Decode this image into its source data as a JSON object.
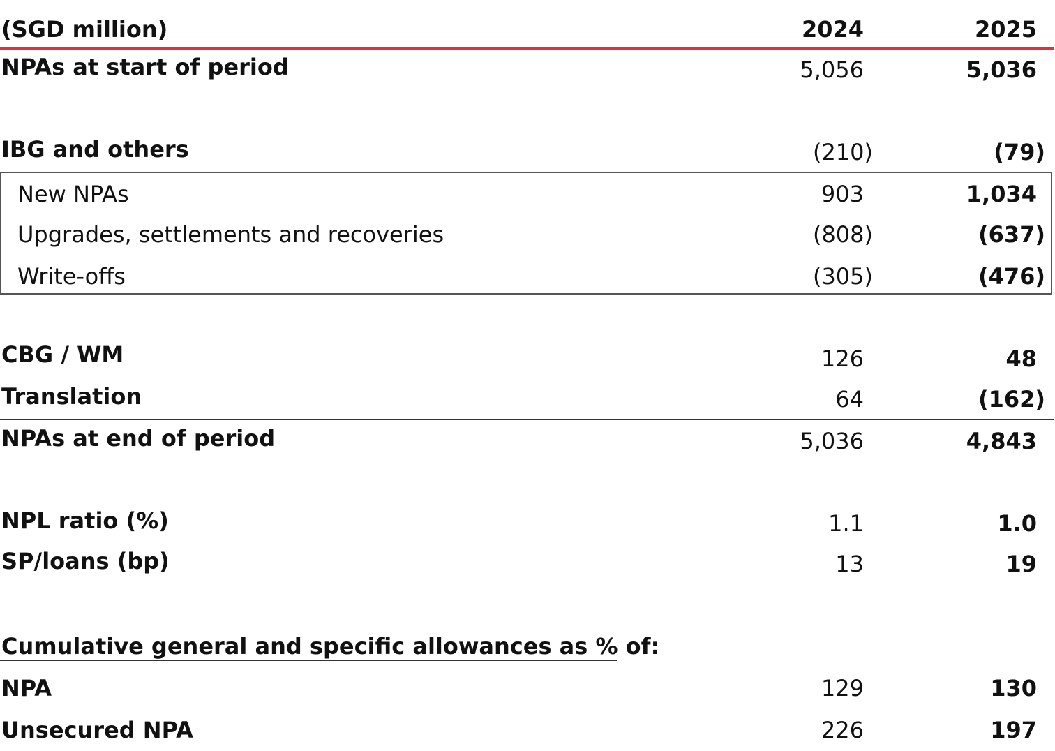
{
  "header": {
    "unit_label": "(SGD million)",
    "col_2024": "2024",
    "col_2025": "2025"
  },
  "rows": {
    "npas_start": {
      "label": "NPAs at start of period",
      "v2024": "5,056",
      "v2025": "5,036"
    },
    "ibg": {
      "label": "IBG and others",
      "v2024": "(210)",
      "v2025": "(79)"
    },
    "new_npas": {
      "label": "New NPAs",
      "v2024": "903",
      "v2025": "1,034"
    },
    "upgrades": {
      "label": "Upgrades, settlements and recoveries",
      "v2024": "(808)",
      "v2025": "(637)"
    },
    "write_offs": {
      "label": "Write-offs",
      "v2024": "(305)",
      "v2025": "(476)"
    },
    "cbg_wm": {
      "label": "CBG / WM",
      "v2024": "126",
      "v2025": "48"
    },
    "translation": {
      "label": "Translation",
      "v2024": "64",
      "v2025": "(162)"
    },
    "npas_end": {
      "label": "NPAs at end of period",
      "v2024": "5,036",
      "v2025": "4,843"
    },
    "npl_ratio": {
      "label": "NPL ratio (%)",
      "v2024": "1.1",
      "v2025": "1.0"
    },
    "sp_loans": {
      "label": "SP/loans (bp)",
      "v2024": "13",
      "v2025": "19"
    },
    "allowances_heading": {
      "label": "Cumulative general and specific allowances as % of:"
    },
    "npa": {
      "label": "NPA",
      "v2024": "129",
      "v2025": "130"
    },
    "unsecured_npa": {
      "label": "Unsecured NPA",
      "v2024": "226",
      "v2025": "197"
    }
  },
  "colors": {
    "header_rule": "#e0323c",
    "text": "#111111",
    "box_border": "#555555"
  }
}
